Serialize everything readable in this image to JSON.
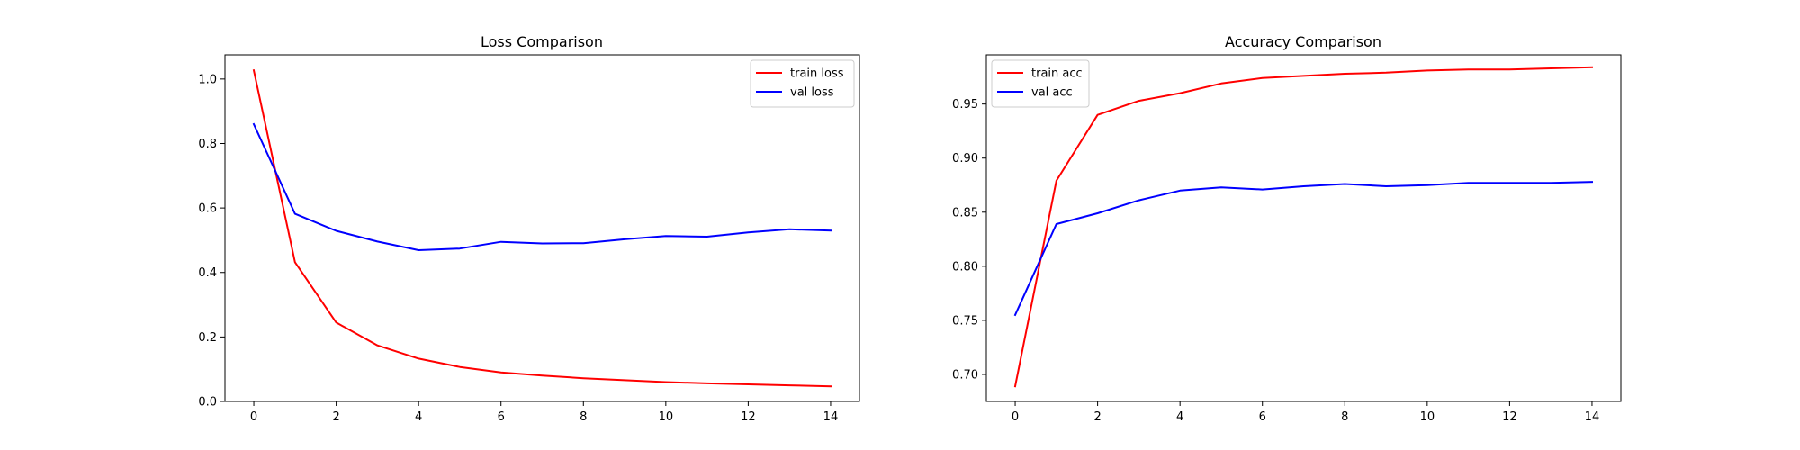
{
  "chart_data": [
    {
      "type": "line",
      "title": "Loss Comparison",
      "xlabel": "",
      "ylabel": "",
      "x": [
        0,
        1,
        2,
        3,
        4,
        5,
        6,
        7,
        8,
        9,
        10,
        11,
        12,
        13,
        14
      ],
      "xlim": [
        -0.7,
        14.7
      ],
      "ylim": [
        0.0,
        1.075
      ],
      "xticks": [
        0,
        2,
        4,
        6,
        8,
        10,
        12,
        14
      ],
      "yticks": [
        0.0,
        0.2,
        0.4,
        0.6,
        0.8,
        1.0
      ],
      "ytick_labels": [
        "0.0",
        "0.2",
        "0.4",
        "0.6",
        "0.8",
        "1.0"
      ],
      "grid": false,
      "legend_position": "top-right",
      "series": [
        {
          "name": "train loss",
          "color": "#ff0000",
          "values": [
            1.027,
            0.432,
            0.245,
            0.174,
            0.133,
            0.107,
            0.09,
            0.08,
            0.072,
            0.066,
            0.06,
            0.056,
            0.053,
            0.05,
            0.047
          ]
        },
        {
          "name": "val loss",
          "color": "#0000ff",
          "values": [
            0.86,
            0.582,
            0.529,
            0.496,
            0.469,
            0.474,
            0.495,
            0.49,
            0.491,
            0.503,
            0.513,
            0.511,
            0.524,
            0.534,
            0.53
          ]
        }
      ]
    },
    {
      "type": "line",
      "title": "Accuracy Comparison",
      "xlabel": "",
      "ylabel": "",
      "x": [
        0,
        1,
        2,
        3,
        4,
        5,
        6,
        7,
        8,
        9,
        10,
        11,
        12,
        13,
        14
      ],
      "xlim": [
        -0.7,
        14.7
      ],
      "ylim": [
        0.675,
        0.9955
      ],
      "xticks": [
        0,
        2,
        4,
        6,
        8,
        10,
        12,
        14
      ],
      "yticks": [
        0.7,
        0.75,
        0.8,
        0.85,
        0.9,
        0.95
      ],
      "ytick_labels": [
        "0.70",
        "0.75",
        "0.80",
        "0.85",
        "0.90",
        "0.95"
      ],
      "grid": false,
      "legend_position": "top-left",
      "series": [
        {
          "name": "train acc",
          "color": "#ff0000",
          "values": [
            0.689,
            0.879,
            0.94,
            0.953,
            0.96,
            0.969,
            0.974,
            0.976,
            0.978,
            0.979,
            0.981,
            0.982,
            0.982,
            0.983,
            0.984
          ]
        },
        {
          "name": "val acc",
          "color": "#0000ff",
          "values": [
            0.755,
            0.839,
            0.849,
            0.861,
            0.87,
            0.873,
            0.871,
            0.874,
            0.876,
            0.874,
            0.875,
            0.877,
            0.877,
            0.877,
            0.878
          ]
        }
      ]
    }
  ]
}
